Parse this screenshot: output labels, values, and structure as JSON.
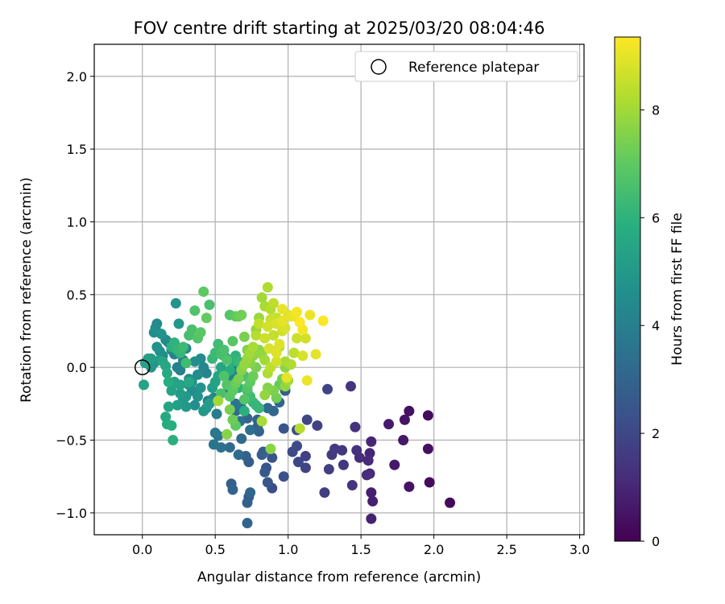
{
  "chart_data": {
    "type": "scatter",
    "title": "FOV centre drift starting at 2025/03/20 08:04:46",
    "xlabel": "Angular distance from reference (arcmin)",
    "ylabel": "Rotation from reference (arcmin)",
    "xlim": [
      -0.33,
      3.03
    ],
    "ylim": [
      -1.15,
      2.22
    ],
    "x_ticks": [
      0.0,
      0.5,
      1.0,
      1.5,
      2.0,
      2.5,
      3.0
    ],
    "x_tick_labels": [
      "0.0",
      "0.5",
      "1.0",
      "1.5",
      "2.0",
      "2.5",
      "3.0"
    ],
    "y_ticks": [
      -1.0,
      -0.5,
      0.0,
      0.5,
      1.0,
      1.5,
      2.0
    ],
    "y_tick_labels": [
      "−1.0",
      "−0.5",
      "0.0",
      "0.5",
      "1.0",
      "1.5",
      "2.0"
    ],
    "grid": true,
    "legend": {
      "position": "top-right",
      "label": "Reference platepar"
    },
    "reference_point": {
      "x": 0.0,
      "y": 0.0
    },
    "colormap": "viridis",
    "colorbar": {
      "label": "Hours from first FF file",
      "range": [
        0,
        9.35
      ],
      "ticks": [
        0,
        2,
        4,
        6,
        8
      ],
      "tick_labels": [
        "0",
        "2",
        "4",
        "6",
        "8"
      ]
    },
    "points": [
      [
        2.11,
        -0.93,
        0.2
      ],
      [
        1.97,
        -0.79,
        0.3
      ],
      [
        1.96,
        -0.33,
        0.3
      ],
      [
        1.96,
        -0.56,
        0.4
      ],
      [
        1.83,
        -0.3,
        0.4
      ],
      [
        1.83,
        -0.82,
        0.5
      ],
      [
        1.8,
        -0.36,
        0.5
      ],
      [
        1.79,
        -0.5,
        0.6
      ],
      [
        1.73,
        -0.67,
        0.6
      ],
      [
        1.69,
        -0.39,
        0.7
      ],
      [
        1.58,
        -0.92,
        0.8
      ],
      [
        1.57,
        -0.86,
        0.8
      ],
      [
        1.57,
        -1.04,
        0.9
      ],
      [
        1.57,
        -0.51,
        1.0
      ],
      [
        1.56,
        -0.59,
        1.0
      ],
      [
        1.56,
        -0.73,
        1.1
      ],
      [
        1.55,
        -0.64,
        1.1
      ],
      [
        1.54,
        -0.74,
        1.2
      ],
      [
        1.49,
        -0.62,
        1.2
      ],
      [
        1.47,
        -0.57,
        1.3
      ],
      [
        1.46,
        -0.41,
        1.3
      ],
      [
        1.44,
        -0.81,
        1.4
      ],
      [
        1.43,
        -0.13,
        1.4
      ],
      [
        1.38,
        -0.67,
        1.5
      ],
      [
        1.37,
        -0.57,
        1.5
      ],
      [
        1.32,
        -0.56,
        1.6
      ],
      [
        1.3,
        -0.6,
        1.6
      ],
      [
        1.28,
        -0.7,
        1.7
      ],
      [
        1.25,
        -0.86,
        1.7
      ],
      [
        1.27,
        -0.15,
        1.9
      ],
      [
        1.2,
        -0.4,
        1.8
      ],
      [
        1.13,
        -0.36,
        2.0
      ],
      [
        1.12,
        -0.61,
        1.8
      ],
      [
        1.12,
        -0.69,
        1.9
      ],
      [
        1.07,
        -0.65,
        2.0
      ],
      [
        1.06,
        -0.54,
        2.1
      ],
      [
        1.03,
        -0.58,
        2.1
      ],
      [
        1.06,
        -0.43,
        2.2
      ],
      [
        0.97,
        -0.42,
        2.4
      ],
      [
        0.97,
        -0.75,
        2.3
      ],
      [
        0.89,
        -0.83,
        2.2
      ],
      [
        0.89,
        -0.62,
        2.4
      ],
      [
        0.86,
        -0.79,
        2.5
      ],
      [
        0.85,
        -0.69,
        2.5
      ],
      [
        0.84,
        -0.72,
        2.6
      ],
      [
        0.83,
        -0.58,
        2.7
      ],
      [
        0.82,
        -0.6,
        2.8
      ],
      [
        0.79,
        -0.41,
        2.9
      ],
      [
        0.79,
        -0.36,
        3.0
      ],
      [
        0.74,
        -0.86,
        3.1
      ],
      [
        0.73,
        -0.89,
        2.6
      ],
      [
        0.73,
        -0.65,
        2.7
      ],
      [
        0.72,
        -0.93,
        2.9
      ],
      [
        0.72,
        -1.07,
        3.0
      ],
      [
        0.72,
        -0.35,
        3.1
      ],
      [
        0.71,
        -0.61,
        2.8
      ],
      [
        0.68,
        -0.49,
        3.2
      ],
      [
        0.67,
        -0.37,
        3.4
      ],
      [
        0.66,
        -0.6,
        3.3
      ],
      [
        0.64,
        -0.3,
        3.2
      ],
      [
        0.62,
        -0.84,
        3.0
      ],
      [
        0.61,
        -0.8,
        2.9
      ],
      [
        0.6,
        -0.55,
        3.3
      ],
      [
        0.59,
        -0.16,
        3.5
      ],
      [
        0.64,
        -0.25,
        3.6
      ],
      [
        0.66,
        -0.07,
        3.7
      ],
      [
        0.65,
        -0.02,
        3.8
      ],
      [
        0.54,
        -0.55,
        3.5
      ],
      [
        0.52,
        -0.47,
        3.6
      ],
      [
        0.5,
        -0.45,
        3.7
      ],
      [
        0.49,
        -0.53,
        3.6
      ],
      [
        0.51,
        -0.32,
        3.9
      ],
      [
        0.49,
        -0.21,
        4.0
      ],
      [
        0.45,
        -0.23,
        4.1
      ],
      [
        0.44,
        -0.04,
        4.2
      ],
      [
        0.42,
        0.0,
        4.3
      ],
      [
        0.4,
        0.06,
        4.4
      ],
      [
        0.38,
        -0.05,
        4.5
      ],
      [
        0.36,
        0.04,
        4.6
      ],
      [
        0.34,
        -0.1,
        4.7
      ],
      [
        0.32,
        -0.12,
        4.8
      ],
      [
        0.3,
        -0.27,
        4.9
      ],
      [
        0.28,
        -0.22,
        5.0
      ],
      [
        0.26,
        -0.18,
        5.1
      ],
      [
        0.24,
        -0.26,
        5.2
      ],
      [
        0.22,
        -0.1,
        5.3
      ],
      [
        0.2,
        -0.16,
        5.4
      ],
      [
        0.18,
        -0.27,
        5.5
      ],
      [
        0.16,
        -0.34,
        5.6
      ],
      [
        0.17,
        -0.39,
        5.7
      ],
      [
        0.2,
        -0.4,
        5.8
      ],
      [
        0.21,
        -0.5,
        5.9
      ],
      [
        0.1,
        0.3,
        4.4
      ],
      [
        0.09,
        0.27,
        4.5
      ],
      [
        0.08,
        0.24,
        4.6
      ],
      [
        0.13,
        0.23,
        4.7
      ],
      [
        0.23,
        0.44,
        4.8
      ],
      [
        0.25,
        0.3,
        4.9
      ],
      [
        0.12,
        0.05,
        5.0
      ],
      [
        0.06,
        0.06,
        5.1
      ],
      [
        0.04,
        0.06,
        5.2
      ],
      [
        0.02,
        0.03,
        5.3
      ],
      [
        0.01,
        -0.12,
        5.4
      ],
      [
        0.14,
        0.04,
        5.5
      ],
      [
        0.16,
        0.01,
        5.6
      ],
      [
        0.17,
        -0.04,
        5.7
      ],
      [
        0.18,
        -0.1,
        5.8
      ],
      [
        0.2,
        0.14,
        5.9
      ],
      [
        0.22,
        0.17,
        6.0
      ],
      [
        0.24,
        0.12,
        6.1
      ],
      [
        0.26,
        0.1,
        6.2
      ],
      [
        0.28,
        0.14,
        6.3
      ],
      [
        0.3,
        0.03,
        6.4
      ],
      [
        0.32,
        0.22,
        6.5
      ],
      [
        0.34,
        0.26,
        6.6
      ],
      [
        0.36,
        0.39,
        6.7
      ],
      [
        0.38,
        0.2,
        6.8
      ],
      [
        0.4,
        0.24,
        6.9
      ],
      [
        0.42,
        0.52,
        7.0
      ],
      [
        0.44,
        0.34,
        7.1
      ],
      [
        0.46,
        0.43,
        6.6
      ],
      [
        0.48,
        0.06,
        6.2
      ],
      [
        0.5,
        0.1,
        6.3
      ],
      [
        0.52,
        0.16,
        6.4
      ],
      [
        0.54,
        0.09,
        6.5
      ],
      [
        0.56,
        0.12,
        6.6
      ],
      [
        0.58,
        0.05,
        6.7
      ],
      [
        0.6,
        0.36,
        6.8
      ],
      [
        0.62,
        0.18,
        6.9
      ],
      [
        0.64,
        0.35,
        7.0
      ],
      [
        0.66,
        0.35,
        7.2
      ],
      [
        0.68,
        0.36,
        7.3
      ],
      [
        0.7,
        0.21,
        7.4
      ],
      [
        0.72,
        0.12,
        7.5
      ],
      [
        0.74,
        0.03,
        7.6
      ],
      [
        0.76,
        0.08,
        7.7
      ],
      [
        0.78,
        0.26,
        7.8
      ],
      [
        0.8,
        0.34,
        7.9
      ],
      [
        0.82,
        0.48,
        8.0
      ],
      [
        0.84,
        0.42,
        8.1
      ],
      [
        0.86,
        0.55,
        8.2
      ],
      [
        0.88,
        0.4,
        8.3
      ],
      [
        0.9,
        0.44,
        8.4
      ],
      [
        0.92,
        0.34,
        8.5
      ],
      [
        0.94,
        0.3,
        8.6
      ],
      [
        0.96,
        0.25,
        8.7
      ],
      [
        0.98,
        0.27,
        8.8
      ],
      [
        1.0,
        0.36,
        8.9
      ],
      [
        1.02,
        0.35,
        9.0
      ],
      [
        1.04,
        0.35,
        9.1
      ],
      [
        1.06,
        0.38,
        9.2
      ],
      [
        1.08,
        0.31,
        9.3
      ],
      [
        1.1,
        0.26,
        9.2
      ],
      [
        1.15,
        0.36,
        9.1
      ],
      [
        1.24,
        0.32,
        9.3
      ],
      [
        1.19,
        0.09,
        9.0
      ],
      [
        1.13,
        -0.09,
        9.1
      ],
      [
        0.99,
        -0.07,
        9.0
      ],
      [
        0.92,
        0.1,
        8.9
      ],
      [
        0.87,
        0.13,
        8.8
      ],
      [
        0.84,
        0.2,
        8.6
      ],
      [
        0.8,
        0.3,
        8.5
      ],
      [
        0.78,
        0.22,
        8.3
      ],
      [
        0.76,
        0.14,
        8.1
      ],
      [
        0.74,
        0.1,
        8.0
      ],
      [
        0.72,
        0.06,
        7.9
      ],
      [
        0.7,
        0.02,
        7.8
      ],
      [
        0.68,
        -0.02,
        7.6
      ],
      [
        0.66,
        -0.08,
        7.4
      ],
      [
        0.64,
        -0.11,
        7.2
      ],
      [
        0.62,
        -0.16,
        7.0
      ],
      [
        0.6,
        -0.2,
        6.9
      ],
      [
        0.58,
        -0.12,
        6.8
      ],
      [
        0.56,
        -0.06,
        6.7
      ],
      [
        0.54,
        -0.18,
        6.6
      ],
      [
        0.52,
        -0.23,
        8.0
      ],
      [
        0.58,
        -0.46,
        7.6
      ],
      [
        0.6,
        -0.29,
        7.4
      ],
      [
        0.62,
        -0.36,
        7.2
      ],
      [
        0.64,
        -0.4,
        7.0
      ],
      [
        0.7,
        -0.22,
        6.8
      ],
      [
        0.72,
        -0.16,
        6.6
      ],
      [
        0.74,
        -0.2,
        6.4
      ],
      [
        0.76,
        -0.24,
        6.2
      ],
      [
        0.78,
        -0.26,
        6.0
      ],
      [
        0.8,
        -0.28,
        6.2
      ],
      [
        0.82,
        -0.37,
        8.1
      ],
      [
        0.84,
        -0.19,
        7.8
      ],
      [
        0.86,
        -0.14,
        7.6
      ],
      [
        0.88,
        -0.56,
        7.7
      ],
      [
        0.9,
        -0.16,
        7.5
      ],
      [
        0.92,
        -0.21,
        7.3
      ],
      [
        0.94,
        -0.12,
        7.1
      ],
      [
        0.96,
        -0.08,
        7.3
      ],
      [
        0.98,
        -0.13,
        7.8
      ],
      [
        1.0,
        -0.09,
        8.0
      ],
      [
        1.02,
        0.02,
        8.2
      ],
      [
        1.04,
        0.1,
        8.4
      ],
      [
        1.06,
        0.2,
        8.6
      ],
      [
        1.08,
        -0.42,
        8.3
      ],
      [
        1.1,
        0.08,
        8.8
      ],
      [
        1.12,
        0.2,
        8.7
      ],
      [
        0.96,
        0.4,
        9.0
      ],
      [
        0.94,
        0.16,
        8.9
      ],
      [
        0.92,
        0.04,
        8.7
      ],
      [
        0.88,
        0.0,
        8.4
      ],
      [
        0.86,
        -0.04,
        8.2
      ],
      [
        0.84,
        0.05,
        8.0
      ],
      [
        0.82,
        0.09,
        7.8
      ],
      [
        0.8,
        0.12,
        7.6
      ],
      [
        0.78,
        0.0,
        7.4
      ],
      [
        0.76,
        -0.06,
        7.2
      ],
      [
        0.74,
        -0.1,
        7.0
      ],
      [
        0.72,
        -0.14,
        6.8
      ],
      [
        0.7,
        -0.06,
        6.6
      ],
      [
        0.68,
        -0.01,
        6.4
      ],
      [
        0.66,
        0.04,
        6.2
      ],
      [
        0.64,
        0.08,
        6.0
      ],
      [
        0.62,
        0.04,
        5.9
      ],
      [
        0.6,
        -0.02,
        5.8
      ],
      [
        0.58,
        0.06,
        5.7
      ],
      [
        0.56,
        0.08,
        5.6
      ],
      [
        0.54,
        0.0,
        5.5
      ],
      [
        0.52,
        -0.06,
        5.4
      ],
      [
        0.5,
        -0.1,
        5.3
      ],
      [
        0.48,
        -0.14,
        5.2
      ],
      [
        0.46,
        -0.25,
        5.1
      ],
      [
        0.44,
        -0.28,
        5.0
      ],
      [
        0.42,
        -0.3,
        4.9
      ],
      [
        0.4,
        -0.14,
        4.8
      ],
      [
        0.38,
        -0.2,
        4.7
      ],
      [
        0.36,
        -0.26,
        4.6
      ],
      [
        0.34,
        -0.16,
        4.5
      ],
      [
        0.32,
        -0.08,
        4.4
      ],
      [
        0.3,
        0.13,
        4.3
      ],
      [
        0.28,
        0.05,
        4.2
      ],
      [
        0.26,
        -0.02,
        4.1
      ],
      [
        0.24,
        0.0,
        4.0
      ],
      [
        0.22,
        0.09,
        4.1
      ],
      [
        0.2,
        0.12,
        4.2
      ],
      [
        0.18,
        0.17,
        4.3
      ],
      [
        0.16,
        0.19,
        4.4
      ],
      [
        0.14,
        0.08,
        4.5
      ],
      [
        0.12,
        0.11,
        4.6
      ],
      [
        0.1,
        0.14,
        4.7
      ],
      [
        0.08,
        0.03,
        4.8
      ],
      [
        0.06,
        0.0,
        4.9
      ],
      [
        0.86,
        0.28,
        8.7
      ],
      [
        0.9,
        0.22,
        8.5
      ],
      [
        0.94,
        0.14,
        8.3
      ],
      [
        0.98,
        0.04,
        8.1
      ],
      [
        0.96,
        0.32,
        9.0
      ],
      [
        0.92,
        0.3,
        8.8
      ],
      [
        0.88,
        0.33,
        8.6
      ],
      [
        0.98,
        0.0,
        7.7
      ],
      [
        0.66,
        -0.14,
        6.0
      ],
      [
        0.7,
        -0.3,
        5.9
      ],
      [
        0.74,
        -0.43,
        3.4
      ],
      [
        0.8,
        -0.44,
        3.0
      ],
      [
        0.86,
        -0.28,
        3.2
      ],
      [
        0.9,
        -0.3,
        3.1
      ],
      [
        0.94,
        -0.24,
        3.0
      ],
      [
        0.98,
        -0.16,
        2.8
      ],
      [
        0.68,
        -0.28,
        3.6
      ],
      [
        0.62,
        -0.06,
        4.0
      ],
      [
        0.6,
        -0.1,
        4.3
      ],
      [
        0.48,
        -0.22,
        4.4
      ],
      [
        0.3,
        -0.2,
        5.0
      ],
      [
        0.26,
        -0.12,
        5.4
      ],
      [
        0.32,
        -0.1,
        5.6
      ]
    ]
  }
}
